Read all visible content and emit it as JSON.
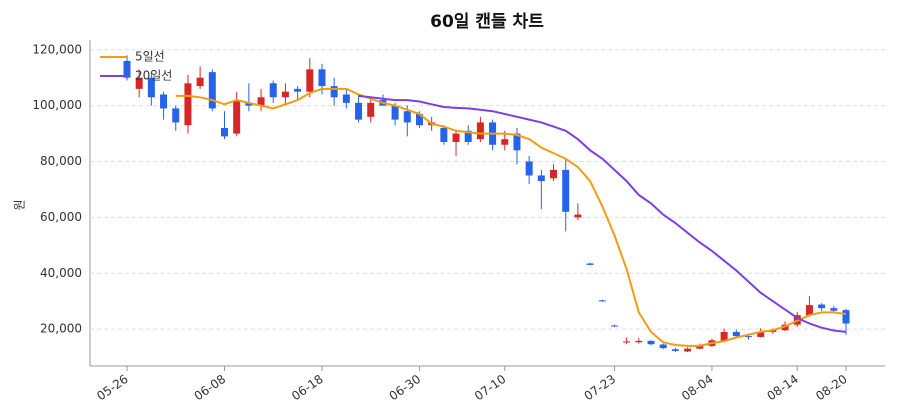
{
  "chart_data": {
    "type": "candlestick",
    "title": "60일 캔들 차트",
    "y_label": "원",
    "categories": [
      "05-26",
      null,
      null,
      null,
      null,
      null,
      null,
      null,
      "06-08",
      null,
      null,
      null,
      null,
      null,
      null,
      null,
      "06-18",
      null,
      null,
      null,
      null,
      null,
      null,
      null,
      "06-30",
      null,
      null,
      null,
      null,
      null,
      null,
      "07-10",
      null,
      null,
      null,
      null,
      null,
      null,
      null,
      null,
      "07-23",
      null,
      null,
      null,
      null,
      null,
      null,
      null,
      "08-04",
      null,
      null,
      null,
      null,
      null,
      null,
      "08-14",
      null,
      null,
      null,
      "08-20"
    ],
    "open": [
      116000,
      106000,
      110000,
      104000,
      99000,
      93000,
      107000,
      112000,
      92000,
      90000,
      101000,
      100000,
      108000,
      103000,
      106000,
      105000,
      113000,
      107000,
      104000,
      101000,
      96000,
      102000,
      100000,
      98000,
      97000,
      93000,
      92000,
      87000,
      91000,
      88000,
      94000,
      86000,
      90000,
      80000,
      75000,
      74000,
      77000,
      60000,
      43500,
      30300,
      21300,
      15300,
      15300,
      15800,
      14500,
      12800,
      12000,
      13000,
      14000,
      15800,
      19000,
      17500,
      17200,
      19000,
      19600,
      21600,
      25000,
      28800,
      27500,
      26800
    ],
    "high": [
      118000,
      113000,
      112000,
      105000,
      100000,
      111000,
      114000,
      113000,
      98000,
      105000,
      108000,
      106000,
      109000,
      108000,
      107000,
      117000,
      115000,
      110000,
      106000,
      104000,
      103000,
      104000,
      101000,
      100000,
      98000,
      96000,
      93000,
      91000,
      93000,
      96000,
      95000,
      91000,
      92000,
      82000,
      77000,
      79000,
      81000,
      65000,
      43800,
      30500,
      21600,
      17000,
      16800,
      16000,
      14800,
      13300,
      13500,
      14800,
      16600,
      20200,
      19800,
      18200,
      20300,
      20200,
      22800,
      26200,
      31800,
      29300,
      28200,
      27200
    ],
    "low": [
      109000,
      103000,
      100000,
      95000,
      91000,
      90000,
      106000,
      98000,
      88000,
      89000,
      98000,
      98000,
      101000,
      100000,
      102000,
      103000,
      104000,
      100000,
      99000,
      94000,
      94000,
      100000,
      93000,
      89000,
      92000,
      91000,
      86000,
      82000,
      86000,
      87000,
      84000,
      84000,
      79000,
      72000,
      63000,
      73000,
      55000,
      59000,
      42800,
      29700,
      20800,
      14600,
      14800,
      14200,
      12800,
      11800,
      11800,
      12800,
      13600,
      15500,
      16800,
      16200,
      17000,
      18300,
      19300,
      20800,
      24500,
      26500,
      25800,
      18000
    ],
    "close": [
      110000,
      110000,
      103000,
      99000,
      94000,
      108000,
      110000,
      99000,
      89000,
      102000,
      100000,
      103000,
      103000,
      105000,
      105000,
      113000,
      107000,
      103000,
      101000,
      95000,
      101000,
      100000,
      95000,
      94000,
      93000,
      94000,
      87000,
      90000,
      87000,
      94000,
      86000,
      88000,
      84000,
      75000,
      73000,
      77000,
      62000,
      61000,
      43000,
      30000,
      21000,
      15600,
      15800,
      14600,
      13200,
      12200,
      13000,
      14000,
      16000,
      19000,
      17500,
      17200,
      19000,
      19600,
      21600,
      25000,
      28600,
      27500,
      26600,
      22000
    ],
    "up_color": "#d62728",
    "down_color": "#2563eb",
    "series": [
      {
        "name": "5일선",
        "color": "#f39c12",
        "values": [
          null,
          null,
          null,
          null,
          103500,
          103500,
          103000,
          102000,
          100500,
          102000,
          101000,
          100000,
          99000,
          100500,
          102000,
          104500,
          106000,
          106000,
          106000,
          104000,
          102500,
          101000,
          100000,
          98500,
          97000,
          93500,
          92500,
          91000,
          90500,
          90000,
          90000,
          90000,
          89500,
          88000,
          85000,
          83000,
          81000,
          78000,
          73000,
          64000,
          53500,
          41500,
          26000,
          19000,
          15300,
          14300,
          14000,
          14000,
          15000,
          15700,
          17000,
          18000,
          19000,
          19600,
          21000,
          23000,
          25000,
          26000,
          26000,
          25400
        ]
      },
      {
        "name": "20일선",
        "color": "#7b3fe4",
        "values": [
          null,
          null,
          null,
          null,
          null,
          null,
          null,
          null,
          null,
          null,
          null,
          null,
          null,
          null,
          null,
          null,
          null,
          null,
          null,
          103500,
          103000,
          102500,
          102000,
          102000,
          101500,
          100500,
          99500,
          99200,
          99000,
          98500,
          98000,
          97000,
          96000,
          95000,
          94000,
          92500,
          91000,
          88000,
          84000,
          81000,
          77000,
          73000,
          68000,
          65000,
          61000,
          58000,
          54500,
          51000,
          48000,
          44500,
          41000,
          37000,
          33000,
          30000,
          27000,
          24000,
          22000,
          20500,
          19500,
          19000
        ]
      }
    ],
    "ylim": [
      6800,
      123500
    ],
    "yticks": [
      {
        "value": 20000,
        "label": "20,000"
      },
      {
        "value": 40000,
        "label": "40,000"
      },
      {
        "value": 60000,
        "label": "60,000"
      },
      {
        "value": 80000,
        "label": "80,000"
      },
      {
        "value": 100000,
        "label": "100,000"
      },
      {
        "value": 120000,
        "label": "120,000"
      }
    ],
    "grid": true,
    "legend": "top-left"
  }
}
